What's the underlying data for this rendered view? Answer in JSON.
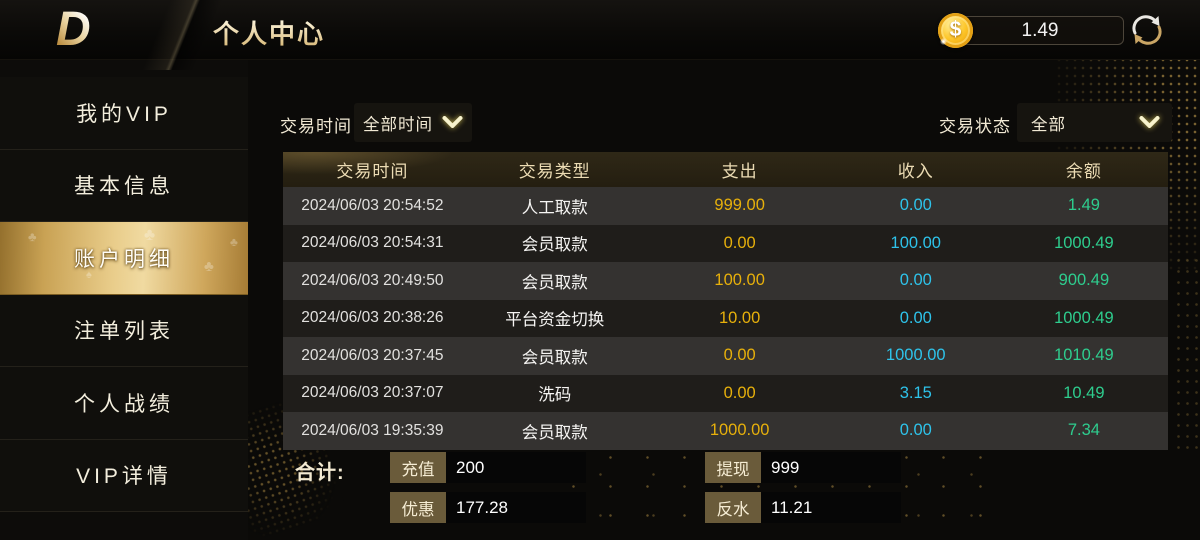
{
  "header": {
    "logo_text": "D",
    "title": "个人中心",
    "coin_symbol": "$",
    "balance": "1.49",
    "icons": {
      "balance": "coin-dollar-icon",
      "refresh": "circular-arrows-icon",
      "dropdowns": "chevron-down-icon"
    }
  },
  "sidebar": {
    "items": [
      {
        "label": "我的VIP",
        "active": false
      },
      {
        "label": "基本信息",
        "active": false
      },
      {
        "label": "账户明细",
        "active": true
      },
      {
        "label": "注单列表",
        "active": false
      },
      {
        "label": "个人战绩",
        "active": false
      },
      {
        "label": "VIP详情",
        "active": false
      }
    ]
  },
  "filters": {
    "time_label": "交易时间",
    "time_value": "全部时间",
    "status_label": "交易状态",
    "status_value": "全部"
  },
  "table": {
    "columns": [
      "交易时间",
      "交易类型",
      "支出",
      "收入",
      "余额"
    ],
    "rows": [
      [
        "2024/06/03 20:54:52",
        "人工取款",
        "999.00",
        "0.00",
        "1.49"
      ],
      [
        "2024/06/03 20:54:31",
        "会员取款",
        "0.00",
        "100.00",
        "1000.49"
      ],
      [
        "2024/06/03 20:49:50",
        "会员取款",
        "100.00",
        "0.00",
        "900.49"
      ],
      [
        "2024/06/03 20:38:26",
        "平台资金切换",
        "10.00",
        "0.00",
        "1000.49"
      ],
      [
        "2024/06/03 20:37:45",
        "会员取款",
        "0.00",
        "1000.00",
        "1010.49"
      ],
      [
        "2024/06/03 20:37:07",
        "洗码",
        "0.00",
        "3.15",
        "10.49"
      ],
      [
        "2024/06/03 19:35:39",
        "会员取款",
        "1000.00",
        "0.00",
        "7.34"
      ]
    ]
  },
  "summary": {
    "label": "合计:",
    "fields": [
      {
        "name": "充值",
        "value": "200"
      },
      {
        "name": "提现",
        "value": "999"
      },
      {
        "name": "优惠",
        "value": "177.28"
      },
      {
        "name": "反水",
        "value": "11.21"
      }
    ]
  },
  "colors": {
    "expense_text": "#e7b00b",
    "income_text": "#2ec3ea",
    "balance_text": "#2ecd8e",
    "accent_gold": "#d9b368",
    "active_item_gold": "#e9cd8b",
    "summary_label_bg": "#6a5b3a"
  }
}
